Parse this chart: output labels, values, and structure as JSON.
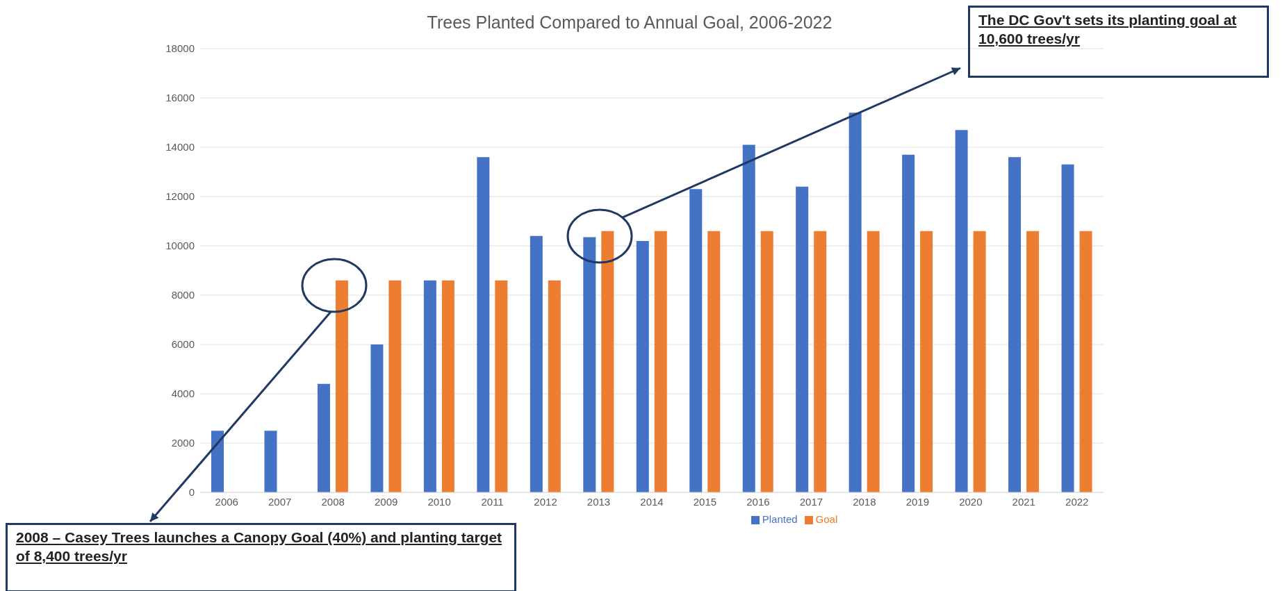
{
  "chart_data": {
    "type": "bar",
    "title": "Trees Planted Compared to Annual Goal, 2006-2022",
    "categories": [
      "2006",
      "2007",
      "2008",
      "2009",
      "2010",
      "2011",
      "2012",
      "2013",
      "2014",
      "2015",
      "2016",
      "2017",
      "2018",
      "2019",
      "2020",
      "2021",
      "2022"
    ],
    "series": [
      {
        "name": "Planted",
        "color": "#4472c4",
        "values": [
          2500,
          2500,
          4400,
          6000,
          8600,
          13600,
          10400,
          10350,
          10200,
          12300,
          14100,
          12400,
          15400,
          13700,
          14700,
          13600,
          13300
        ]
      },
      {
        "name": "Goal",
        "color": "#ed7d31",
        "values": [
          null,
          null,
          8600,
          8600,
          8600,
          8600,
          8600,
          10600,
          10600,
          10600,
          10600,
          10600,
          10600,
          10600,
          10600,
          10600,
          10600
        ]
      }
    ],
    "ylim": [
      0,
      18000
    ],
    "yticks": [
      0,
      2000,
      4000,
      6000,
      8000,
      10000,
      12000,
      14000,
      16000,
      18000
    ],
    "grid": "y",
    "legend": "bottom",
    "annotations": [
      "2008 – Casey Trees launches a Canopy Goal (40%) and planting target of 8,400 trees/yr",
      "The DC Gov't sets its planting goal at 10,600 trees/yr"
    ]
  }
}
